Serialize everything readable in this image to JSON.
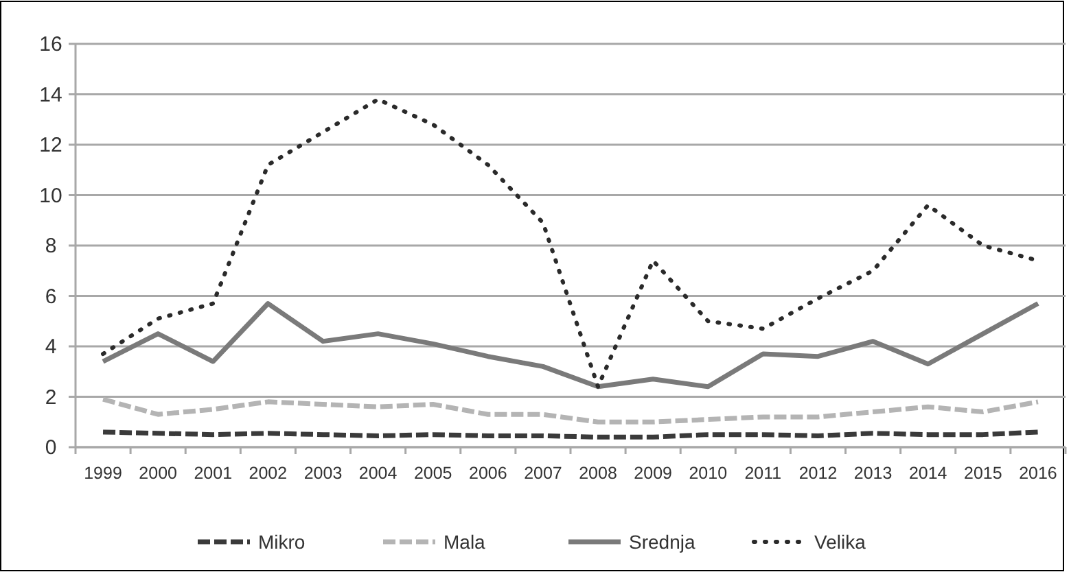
{
  "chart_data": {
    "type": "line",
    "categories": [
      "1999",
      "2000",
      "2001",
      "2002",
      "2003",
      "2004",
      "2005",
      "2006",
      "2007",
      "2008",
      "2009",
      "2010",
      "2011",
      "2012",
      "2013",
      "2014",
      "2015",
      "2016"
    ],
    "series": [
      {
        "name": "Mikro",
        "color": "#3a3a3a",
        "line_style": "dashed",
        "values": [
          0.6,
          0.55,
          0.5,
          0.55,
          0.5,
          0.45,
          0.5,
          0.45,
          0.45,
          0.4,
          0.4,
          0.5,
          0.5,
          0.45,
          0.55,
          0.5,
          0.5,
          0.6
        ]
      },
      {
        "name": "Mala",
        "color": "#b4b4b4",
        "line_style": "dashed",
        "values": [
          1.9,
          1.3,
          1.5,
          1.8,
          1.7,
          1.6,
          1.7,
          1.3,
          1.3,
          1.0,
          1.0,
          1.1,
          1.2,
          1.2,
          1.4,
          1.6,
          1.4,
          1.8
        ]
      },
      {
        "name": "Srednja",
        "color": "#7a7a7a",
        "line_style": "solid",
        "values": [
          3.4,
          4.5,
          3.4,
          5.7,
          4.2,
          4.5,
          4.1,
          3.6,
          3.2,
          2.4,
          2.7,
          2.4,
          3.7,
          3.6,
          4.2,
          3.3,
          4.5,
          5.7
        ]
      },
      {
        "name": "Velika",
        "color": "#2a2a2a",
        "line_style": "dotted",
        "values": [
          3.7,
          5.1,
          5.7,
          11.2,
          12.5,
          13.8,
          12.8,
          11.2,
          8.9,
          2.4,
          7.4,
          5.0,
          4.7,
          5.9,
          7.0,
          9.6,
          8.0,
          7.4
        ]
      }
    ],
    "ylim": [
      0,
      16
    ],
    "yticks": [
      0,
      2,
      4,
      6,
      8,
      10,
      12,
      14,
      16
    ],
    "grid": "y",
    "legend": "bottom",
    "marker": "none"
  }
}
